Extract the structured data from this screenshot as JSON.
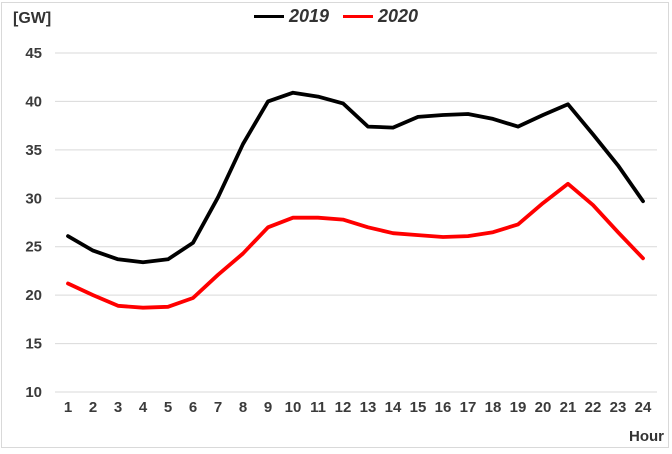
{
  "chart": {
    "unit_label": "[GW]",
    "x_axis_label": "Hour",
    "grid_color": "#d9d9d9",
    "text_color": "#3b3b3b",
    "y_ticks": [
      45,
      40,
      35,
      30,
      25,
      20,
      15,
      10
    ]
  },
  "chart_data": {
    "type": "line",
    "title": "",
    "xlabel": "Hour",
    "ylabel": "[GW]",
    "x": [
      1,
      2,
      3,
      4,
      5,
      6,
      7,
      8,
      9,
      10,
      11,
      12,
      13,
      14,
      15,
      16,
      17,
      18,
      19,
      20,
      21,
      22,
      23,
      24
    ],
    "series": [
      {
        "name": "2019",
        "color": "#000000",
        "values": [
          26.1,
          24.6,
          23.7,
          23.4,
          23.7,
          25.4,
          30.1,
          35.6,
          40.0,
          40.9,
          40.5,
          39.8,
          37.4,
          37.3,
          38.4,
          38.6,
          38.7,
          38.2,
          37.4,
          38.6,
          39.7,
          36.6,
          33.4,
          29.7
        ]
      },
      {
        "name": "2020",
        "color": "#ff0000",
        "values": [
          21.2,
          20.0,
          18.9,
          18.7,
          18.8,
          19.7,
          22.1,
          24.3,
          27.0,
          28.0,
          28.0,
          27.8,
          27.0,
          26.4,
          26.2,
          26.0,
          26.1,
          26.5,
          27.3,
          29.5,
          31.5,
          29.3,
          26.5,
          23.8
        ]
      }
    ],
    "ylim": [
      10,
      45
    ],
    "y_tick_step": 5,
    "grid": "horizontal",
    "legend_position": "top-center"
  }
}
